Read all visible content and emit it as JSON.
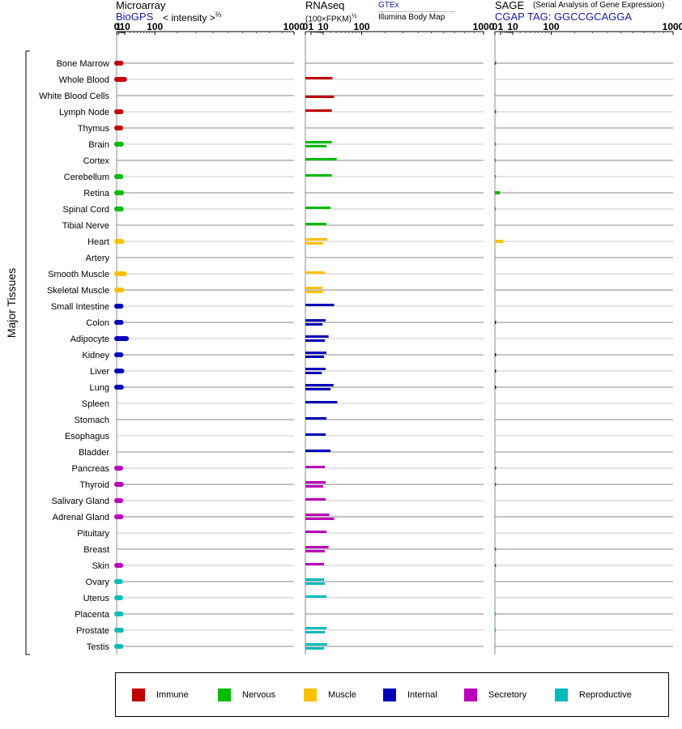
{
  "headers": {
    "microarray": {
      "title": "Microarray",
      "source": "BioGPS",
      "unit": "< intensity >",
      "unit_exp": "⅔"
    },
    "rnaseq": {
      "title": "RNAseq",
      "unit": "(100×FPKM)",
      "unit_exp": "½",
      "source1": "GTEx",
      "source2": "Illumina Body Map"
    },
    "sage": {
      "title": "SAGE",
      "subtitle": "(Serial Analysis of Gene Expression)",
      "tag": "CGAP  TAG: GGCCGCAGGA"
    }
  },
  "ylabel": "Major Tissues",
  "groups": {
    "Immune": "#c00000",
    "Nervous": "#00bb00",
    "Muscle": "#ffc000",
    "Internal": "#0000bb",
    "Secretory": "#bb00bb",
    "Reproductive": "#00bbbb"
  },
  "legend": [
    {
      "label": "Immune",
      "color": "#c00000"
    },
    {
      "label": "Nervous",
      "color": "#00bb00"
    },
    {
      "label": "Muscle",
      "color": "#ffc000"
    },
    {
      "label": "Internal",
      "color": "#0000bb"
    },
    {
      "label": "Secretory",
      "color": "#bb00bb"
    },
    {
      "label": "Reproductive",
      "color": "#00bbbb"
    }
  ],
  "chart_data": [
    {
      "type": "bar",
      "panel": "microarray",
      "ticks": [
        "0",
        "1",
        "10",
        "100",
        "1000"
      ],
      "scale": "x^(2/3) axis, 0 to 1000",
      "xlim": [
        0,
        1000
      ],
      "categories": [
        "Bone Marrow",
        "Whole Blood",
        "White Blood Cells",
        "Lymph Node",
        "Thymus",
        "Brain",
        "Cortex",
        "Cerebellum",
        "Retina",
        "Spinal Cord",
        "Tibial Nerve",
        "Heart",
        "Artery",
        "Smooth Muscle",
        "Skeletal Muscle",
        "Small Intestine",
        "Colon",
        "Adipocyte",
        "Kidney",
        "Liver",
        "Lung",
        "Spleen",
        "Stomach",
        "Esophagus",
        "Bladder",
        "Pancreas",
        "Thyroid",
        "Salivary Gland",
        "Adrenal Gland",
        "Pituitary",
        "Breast",
        "Skin",
        "Ovary",
        "Uterus",
        "Placenta",
        "Prostate",
        "Testis"
      ],
      "group_of": [
        "Immune",
        "Immune",
        "Immune",
        "Immune",
        "Immune",
        "Nervous",
        "Nervous",
        "Nervous",
        "Nervous",
        "Nervous",
        "Nervous",
        "Muscle",
        "Muscle",
        "Muscle",
        "Muscle",
        "Internal",
        "Internal",
        "Internal",
        "Internal",
        "Internal",
        "Internal",
        "Internal",
        "Internal",
        "Internal",
        "Internal",
        "Secretory",
        "Secretory",
        "Secretory",
        "Secretory",
        "Secretory",
        "Secretory",
        "Secretory",
        "Reproductive",
        "Reproductive",
        "Reproductive",
        "Reproductive",
        "Reproductive"
      ],
      "values": [
        4.0,
        9.5,
        null,
        3.9,
        3.5,
        4.4,
        null,
        3.6,
        4.6,
        4.2,
        null,
        5.3,
        null,
        9.5,
        5.1,
        3.9,
        4.0,
        13.0,
        3.8,
        5.0,
        4.4,
        null,
        null,
        null,
        null,
        3.5,
        4.3,
        3.6,
        3.9,
        null,
        null,
        3.6,
        3.2,
        3.3,
        3.8,
        4.4,
        3.6
      ]
    },
    {
      "type": "bar",
      "panel": "rnaseq",
      "ticks": [
        "0",
        "1",
        "10",
        "100",
        "1000"
      ],
      "scale": "x^(1/2) axis, 0 to 1000",
      "xlim": [
        0,
        1000
      ],
      "series": [
        {
          "name": "GTEx",
          "values": [
            null,
            23,
            null,
            22,
            null,
            22,
            31,
            22,
            null,
            20,
            14,
            15,
            null,
            12,
            9.2,
            26,
            13,
            17,
            14,
            13,
            25,
            32,
            14,
            13,
            20,
            12,
            13,
            13,
            18,
            14,
            17,
            11,
            11,
            14,
            null,
            14,
            15
          ]
        },
        {
          "name": "Illumina Body Map",
          "values": [
            null,
            null,
            26,
            null,
            null,
            14,
            null,
            null,
            null,
            null,
            null,
            10,
            null,
            null,
            10,
            null,
            9.2,
            12,
            11,
            8.5,
            20,
            null,
            null,
            null,
            null,
            null,
            10,
            null,
            26,
            null,
            12,
            null,
            12,
            null,
            null,
            12,
            11
          ]
        }
      ]
    },
    {
      "type": "bar",
      "panel": "sage",
      "ticks": [
        "0",
        "1",
        "10",
        "100",
        "1000"
      ],
      "scale": "x^(1/2) axis, 0 to 1000",
      "xlim": [
        0,
        1000
      ],
      "values": [
        0.04,
        null,
        null,
        0.04,
        null,
        0.04,
        0.03,
        0.03,
        0.8,
        0.03,
        null,
        2.2,
        null,
        null,
        0.03,
        null,
        0.04,
        null,
        0.04,
        0.04,
        0.04,
        null,
        null,
        null,
        null,
        0.04,
        0.04,
        null,
        null,
        null,
        0.04,
        0.04,
        null,
        null,
        0.03,
        0.03,
        null
      ]
    }
  ]
}
